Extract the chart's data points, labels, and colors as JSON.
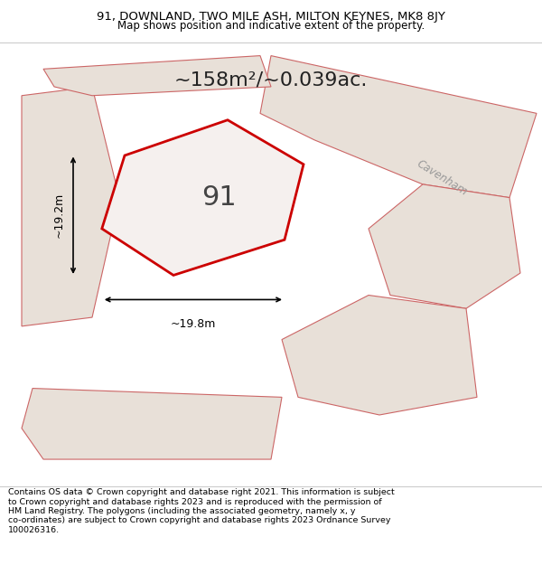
{
  "title_line1": "91, DOWNLAND, TWO MILE ASH, MILTON KEYNES, MK8 8JY",
  "title_line2": "Map shows position and indicative extent of the property.",
  "area_text": "~158m²/~0.039ac.",
  "label_91": "91",
  "dim_width": "~19.8m",
  "dim_height": "~19.2m",
  "road_label": "Cavenham",
  "footer_wrapped": "Contains OS data © Crown copyright and database right 2021. This information is subject\nto Crown copyright and database rights 2023 and is reproduced with the permission of\nHM Land Registry. The polygons (including the associated geometry, namely x, y\nco-ordinates) are subject to Crown copyright and database rights 2023 Ordnance Survey\n100026316.",
  "bg_color": "#f0ece8",
  "plot_fill": "#f5f0ee",
  "plot_edge": "#cc0000",
  "neighbor_fill": "#e8e0d8",
  "neighbor_edge": "#cc6666",
  "title_color": "#000000",
  "footer_color": "#000000",
  "dim_color": "#000000",
  "header_bg": "#ffffff",
  "footer_bg": "#ffffff"
}
